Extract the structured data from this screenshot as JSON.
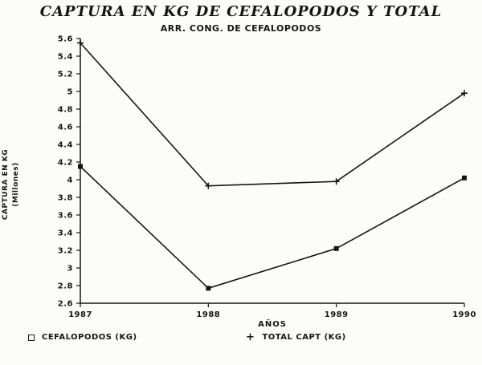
{
  "chart_data": {
    "type": "line",
    "title": "CAPTURA EN KG DE CEFALOPODOS Y TOTAL",
    "subtitle": "ARR. CONG. DE CEFALOPODOS",
    "xlabel": "AÑOS",
    "ylabel": "CAPTURA EN KG",
    "ylabel_sub": "(Millones)",
    "x": [
      "1987",
      "1988",
      "1989",
      "1990"
    ],
    "series": [
      {
        "name": "CEFALOPODOS (KG)",
        "marker": "square",
        "values": [
          4.15,
          2.77,
          3.22,
          4.02
        ]
      },
      {
        "name": "TOTAL CAPT (KG)",
        "marker": "plus",
        "values": [
          5.55,
          3.93,
          3.98,
          4.98
        ]
      }
    ],
    "ylim": [
      2.6,
      5.6
    ],
    "ytick_step": 0.2,
    "grid": false,
    "legend_position": "bottom",
    "line_color": "#151515"
  },
  "legend": {
    "marker_square": "□",
    "marker_plus": "+"
  }
}
